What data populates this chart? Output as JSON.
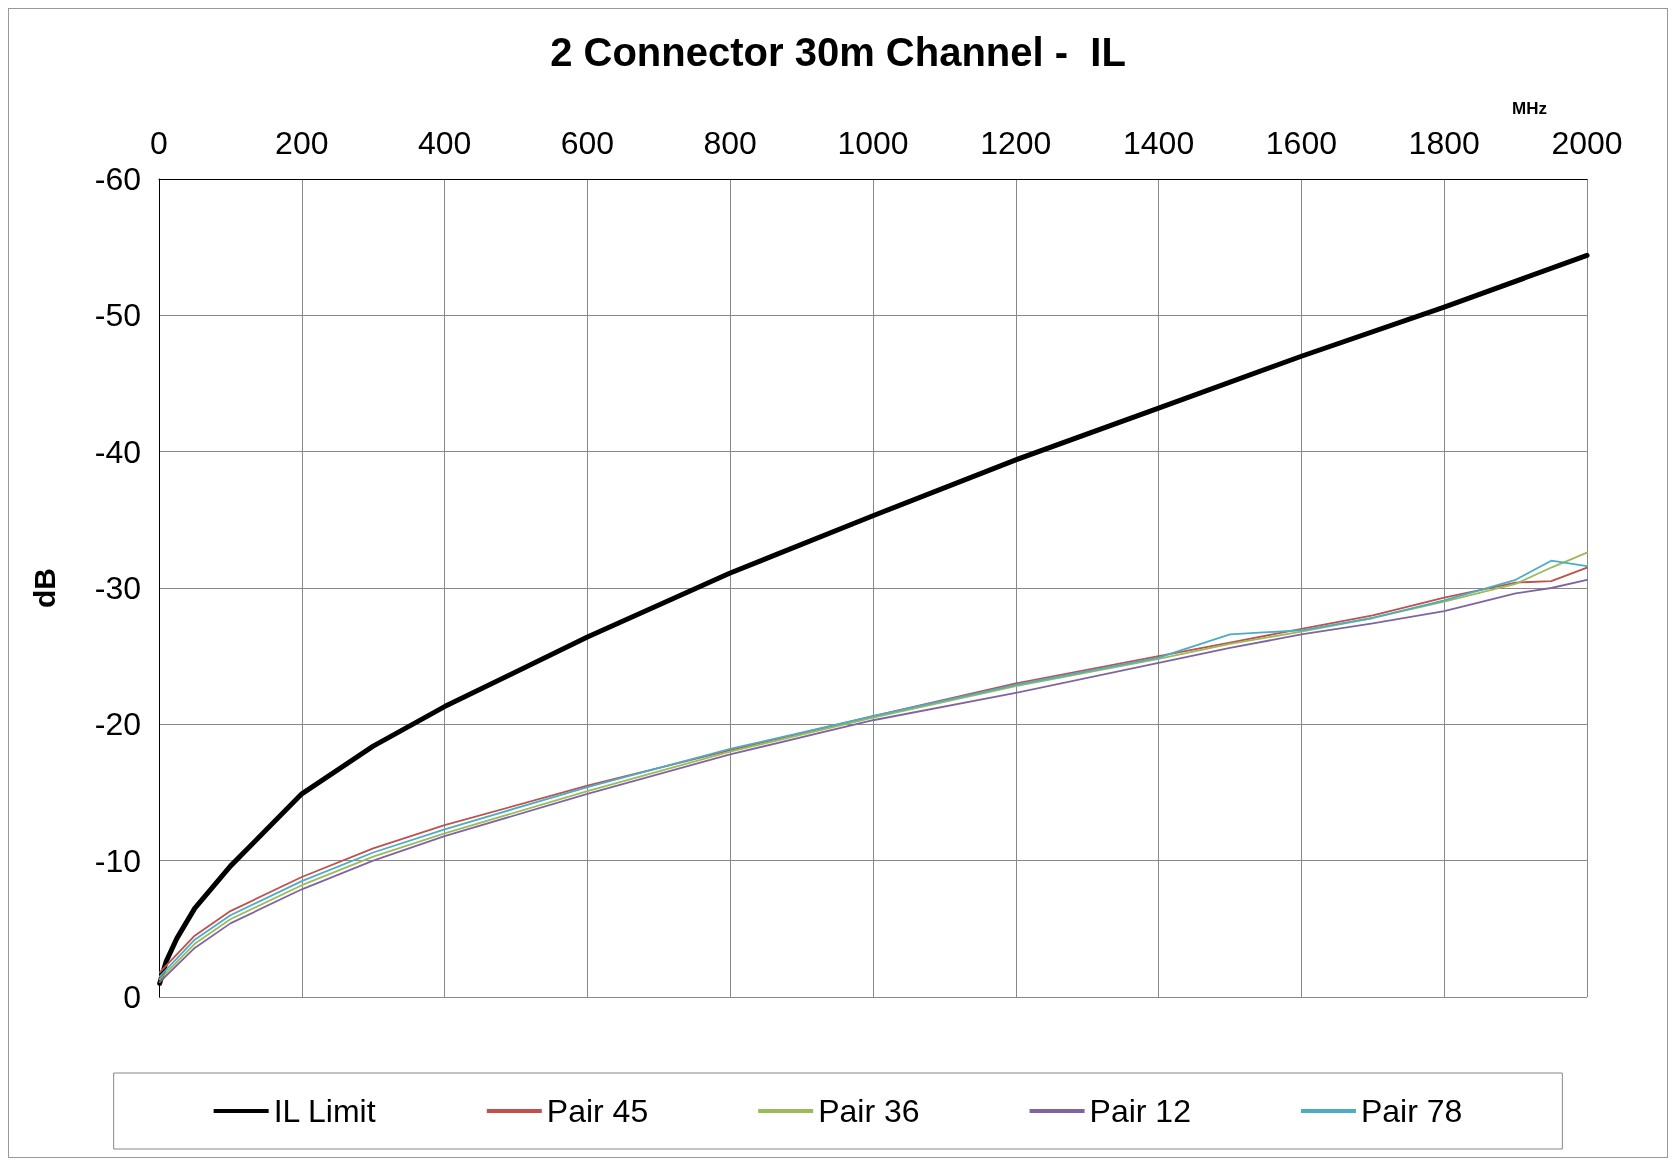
{
  "chart_data": {
    "type": "line",
    "title": "2 Connector 30m Channel -  IL",
    "xlabel": "MHz",
    "ylabel": "dB",
    "xlim": [
      0,
      2000
    ],
    "xticks": [
      0,
      200,
      400,
      600,
      800,
      1000,
      1200,
      1400,
      1600,
      1800,
      2000
    ],
    "ylim": [
      0,
      -60
    ],
    "yticks": [
      0,
      -10,
      -20,
      -30,
      -40,
      -50,
      -60
    ],
    "grid": true,
    "legend": "bottom",
    "marker": "none",
    "line_style": "solid",
    "series": [
      {
        "name": "IL Limit",
        "color": "#000000",
        "x": [
          1,
          10,
          25,
          50,
          100,
          200,
          300,
          400,
          600,
          800,
          1000,
          1200,
          1400,
          1600,
          1800,
          2000
        ],
        "values": [
          -1,
          -2.6,
          -4.3,
          -6.5,
          -9.6,
          -14.9,
          -18.4,
          -21.3,
          -26.4,
          -31.1,
          -35.3,
          -39.4,
          -43.2,
          -47,
          -50.6,
          -54.4
        ]
      },
      {
        "name": "Pair 45",
        "color": "#c0504d",
        "x": [
          1,
          50,
          100,
          200,
          300,
          400,
          600,
          800,
          1000,
          1200,
          1400,
          1500,
          1600,
          1700,
          1800,
          1900,
          1950,
          2000
        ],
        "values": [
          -1.8,
          -4.5,
          -6.3,
          -8.8,
          -10.9,
          -12.6,
          -15.5,
          -18.1,
          -20.6,
          -23,
          -25,
          -26,
          -27,
          -28,
          -29.3,
          -30.4,
          -30.5,
          -31.5
        ]
      },
      {
        "name": "Pair 36",
        "color": "#9bbb59",
        "x": [
          1,
          50,
          100,
          200,
          300,
          400,
          600,
          800,
          1000,
          1200,
          1400,
          1500,
          1600,
          1700,
          1800,
          1900,
          1950,
          2000
        ],
        "values": [
          -1.3,
          -3.9,
          -5.7,
          -8.2,
          -10.3,
          -12,
          -15.1,
          -18,
          -20.5,
          -22.8,
          -24.8,
          -25.9,
          -26.8,
          -27.8,
          -29,
          -30.3,
          -31.5,
          -32.6
        ]
      },
      {
        "name": "Pair 12",
        "color": "#8064a2",
        "x": [
          1,
          50,
          100,
          200,
          300,
          400,
          600,
          800,
          1000,
          1200,
          1400,
          1500,
          1600,
          1700,
          1800,
          1900,
          1950,
          2000
        ],
        "values": [
          -1.1,
          -3.6,
          -5.4,
          -7.9,
          -10,
          -11.8,
          -14.9,
          -17.8,
          -20.3,
          -22.3,
          -24.5,
          -25.6,
          -26.6,
          -27.4,
          -28.3,
          -29.6,
          -30,
          -30.6
        ]
      },
      {
        "name": "Pair 78",
        "color": "#4bacc6",
        "x": [
          1,
          50,
          100,
          200,
          300,
          400,
          600,
          800,
          1000,
          1200,
          1400,
          1500,
          1600,
          1700,
          1800,
          1900,
          1950,
          2000
        ],
        "values": [
          -1.5,
          -4.2,
          -6,
          -8.5,
          -10.6,
          -12.3,
          -15.4,
          -18.2,
          -20.6,
          -22.9,
          -24.9,
          -26.6,
          -26.9,
          -27.8,
          -29.1,
          -30.6,
          -32,
          -31.6
        ]
      }
    ]
  }
}
